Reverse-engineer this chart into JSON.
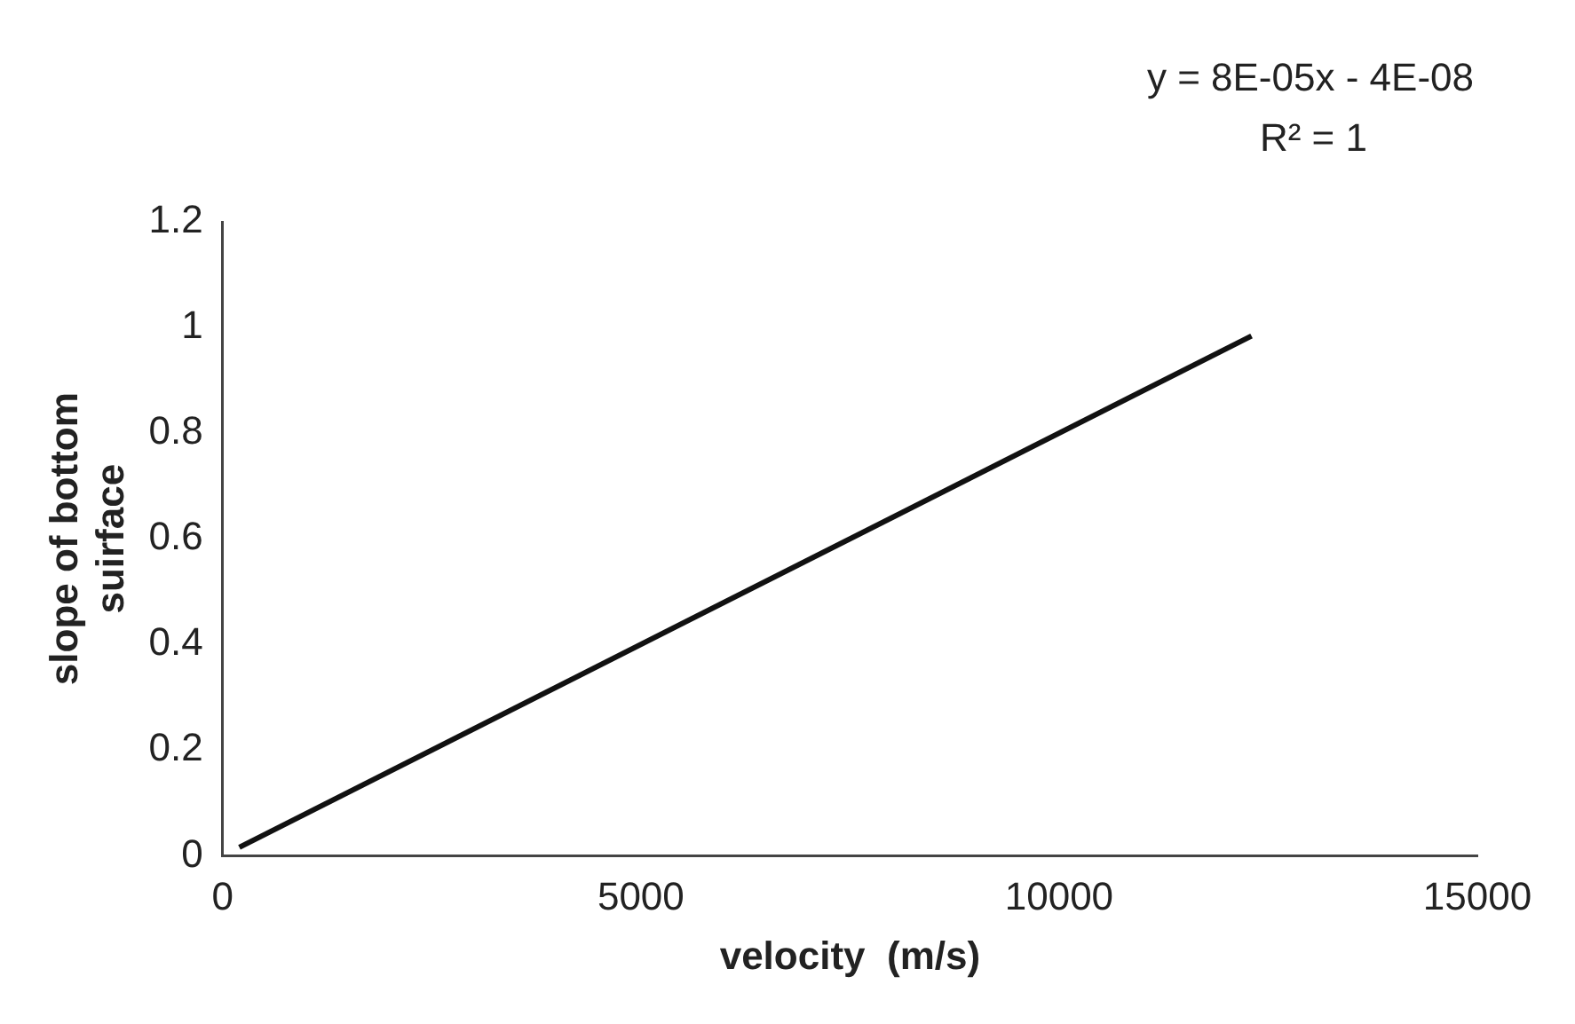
{
  "chart_data": {
    "type": "line",
    "xlabel": "velocity  (m/s)",
    "ylabel": "slope of bottom suirface",
    "annotations": [
      "y = 8E-05x - 4E-08",
      "R² = 1"
    ],
    "series": [
      {
        "color": "#111111",
        "x": [
          200,
          12300
        ],
        "values": [
          0.016,
          0.984
        ]
      }
    ],
    "xlim": [
      0,
      15000
    ],
    "xticks": [
      0,
      5000,
      10000,
      15000
    ],
    "ylim": [
      0,
      1.2
    ],
    "yticks": [
      0,
      0.2,
      0.4,
      0.6,
      0.8,
      1,
      1.2
    ],
    "grid": false,
    "legend": false
  }
}
